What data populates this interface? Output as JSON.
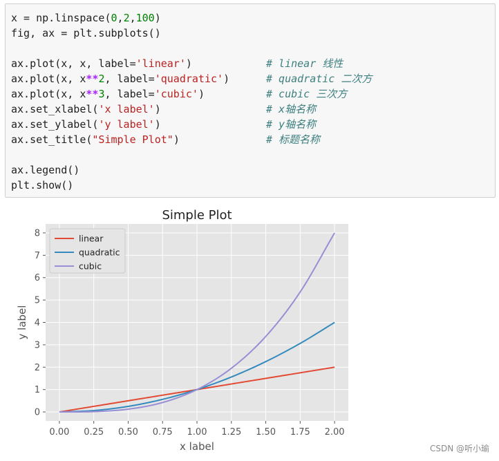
{
  "code_cell": {
    "lines": [
      {
        "code": "x = np.linspace(0,2,100)",
        "comment": ""
      },
      {
        "code": "fig, ax = plt.subplots()",
        "comment": ""
      },
      {
        "code": "",
        "comment": ""
      },
      {
        "code": "ax.plot(x, x, label='linear')",
        "comment": "# linear 线性"
      },
      {
        "code": "ax.plot(x, x**2, label='quadratic')",
        "comment": "# quadratic 二次方"
      },
      {
        "code": "ax.plot(x, x**3, label='cubic')",
        "comment": "# cubic 三次方"
      },
      {
        "code": "ax.set_xlabel('x label')",
        "comment": "# x轴名称"
      },
      {
        "code": "ax.set_ylabel('y label')",
        "comment": "# y轴名称"
      },
      {
        "code": "ax.set_title(\"Simple Plot\")",
        "comment": "# 标题名称"
      },
      {
        "code": "",
        "comment": ""
      },
      {
        "code": "ax.legend()",
        "comment": ""
      },
      {
        "code": "plt.show()",
        "comment": ""
      }
    ]
  },
  "chart_data": {
    "type": "line",
    "title": "Simple Plot",
    "xlabel": "x label",
    "ylabel": "y label",
    "xlim": [
      -0.1,
      2.1
    ],
    "ylim": [
      -0.4,
      8.4
    ],
    "xticks": [
      0.0,
      0.25,
      0.5,
      0.75,
      1.0,
      1.25,
      1.5,
      1.75,
      2.0
    ],
    "xtick_labels": [
      "0.00",
      "0.25",
      "0.50",
      "0.75",
      "1.00",
      "1.25",
      "1.50",
      "1.75",
      "2.00"
    ],
    "yticks": [
      0,
      1,
      2,
      3,
      4,
      5,
      6,
      7,
      8
    ],
    "ytick_labels": [
      "0",
      "1",
      "2",
      "3",
      "4",
      "5",
      "6",
      "7",
      "8"
    ],
    "grid": true,
    "legend_position": "top-left",
    "x": [
      0.0,
      0.25,
      0.5,
      0.75,
      1.0,
      1.25,
      1.5,
      1.75,
      2.0
    ],
    "series": [
      {
        "name": "linear",
        "color": "#e24a33",
        "values": [
          0.0,
          0.25,
          0.5,
          0.75,
          1.0,
          1.25,
          1.5,
          1.75,
          2.0
        ]
      },
      {
        "name": "quadratic",
        "color": "#348abd",
        "values": [
          0.0,
          0.0625,
          0.25,
          0.5625,
          1.0,
          1.5625,
          2.25,
          3.0625,
          4.0
        ]
      },
      {
        "name": "cubic",
        "color": "#988ed5",
        "values": [
          0.0,
          0.015625,
          0.125,
          0.421875,
          1.0,
          1.953125,
          3.375,
          5.359375,
          8.0
        ]
      }
    ]
  },
  "watermark": "CSDN @听小瑜"
}
